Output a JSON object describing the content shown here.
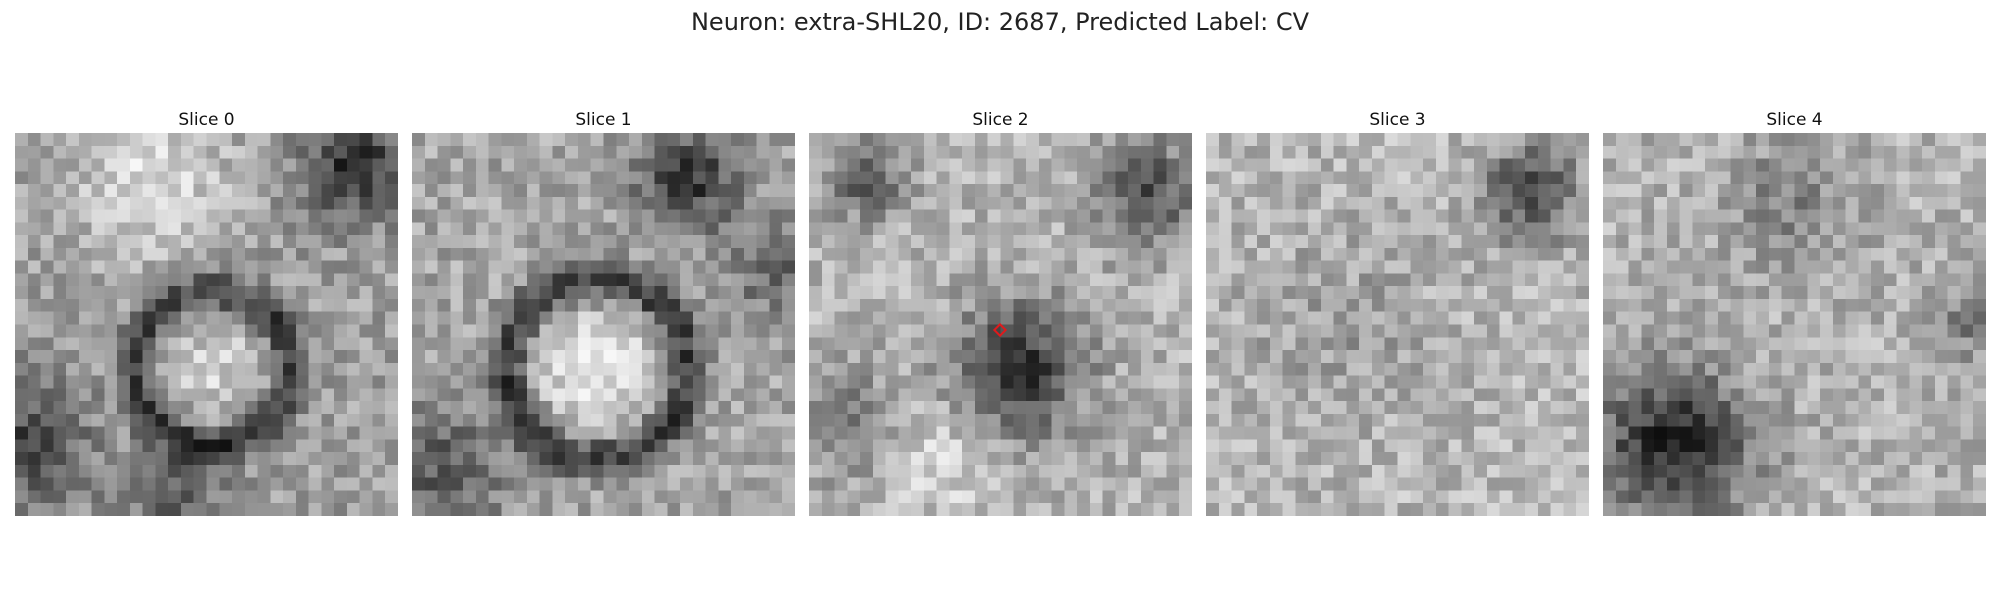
{
  "figure": {
    "title": "Neuron: extra-SHL20, ID: 2687, Predicted Label: CV"
  },
  "panels": [
    {
      "label": "Slice 0"
    },
    {
      "label": "Slice 1"
    },
    {
      "label": "Slice 2",
      "has_marker": true
    },
    {
      "label": "Slice 3"
    },
    {
      "label": "Slice 4"
    }
  ],
  "colors": {
    "marker": "#e0191b",
    "colormap": "grayscale"
  }
}
